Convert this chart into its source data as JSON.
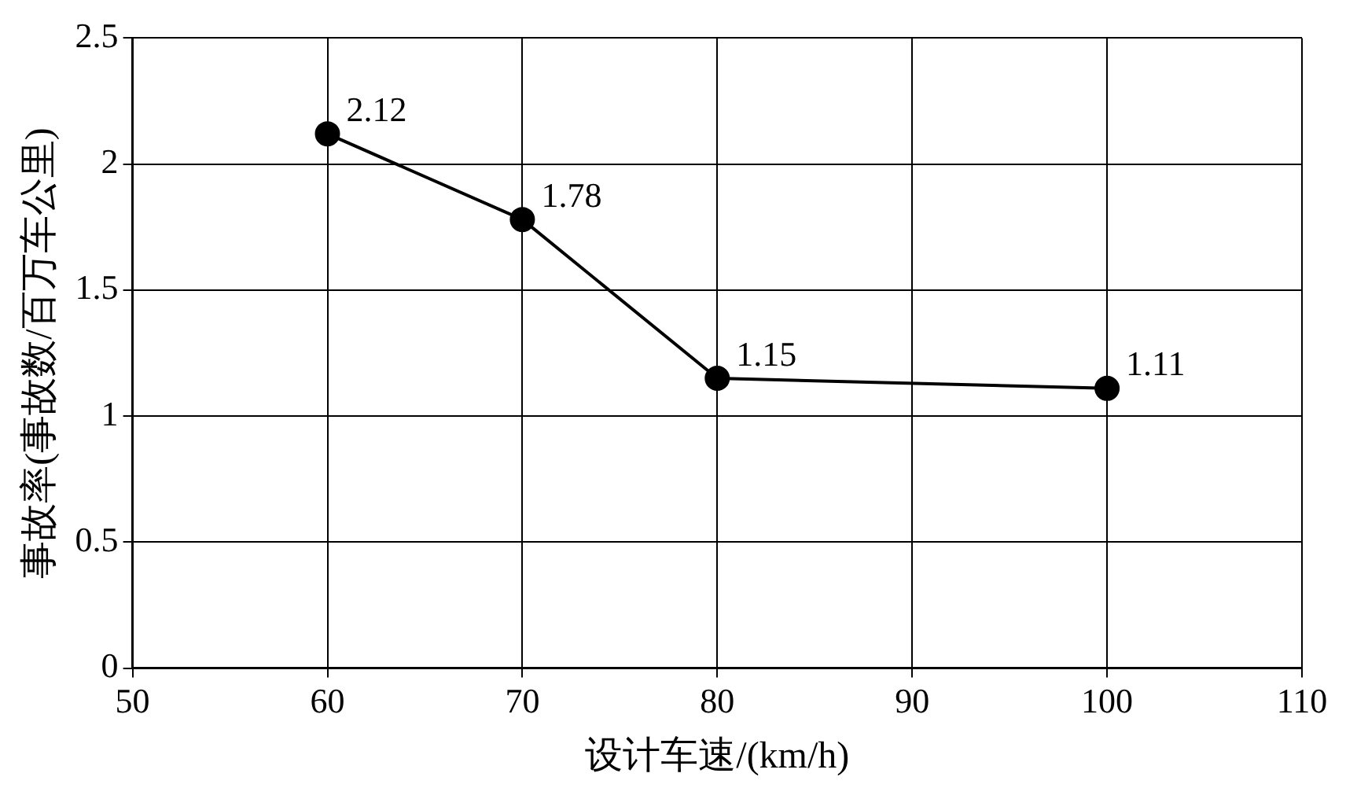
{
  "chart_data": {
    "type": "line",
    "xlabel": "设计车速/(km/h)",
    "ylabel": "事故率(事故数/百万车公里)",
    "x": [
      60,
      70,
      80,
      100
    ],
    "series": [
      {
        "color": "#000000",
        "values": [
          2.12,
          1.78,
          1.15,
          1.11
        ]
      }
    ],
    "xlim": [
      50,
      110
    ],
    "xticks": [
      50,
      60,
      70,
      80,
      90,
      100,
      110
    ],
    "ylim": [
      0,
      2.5
    ],
    "yticks": [
      0,
      0.5,
      1,
      1.5,
      2,
      2.5
    ],
    "grid": true,
    "legend": false,
    "marker": "circle",
    "line_style": "solid",
    "data_labels": true
  }
}
